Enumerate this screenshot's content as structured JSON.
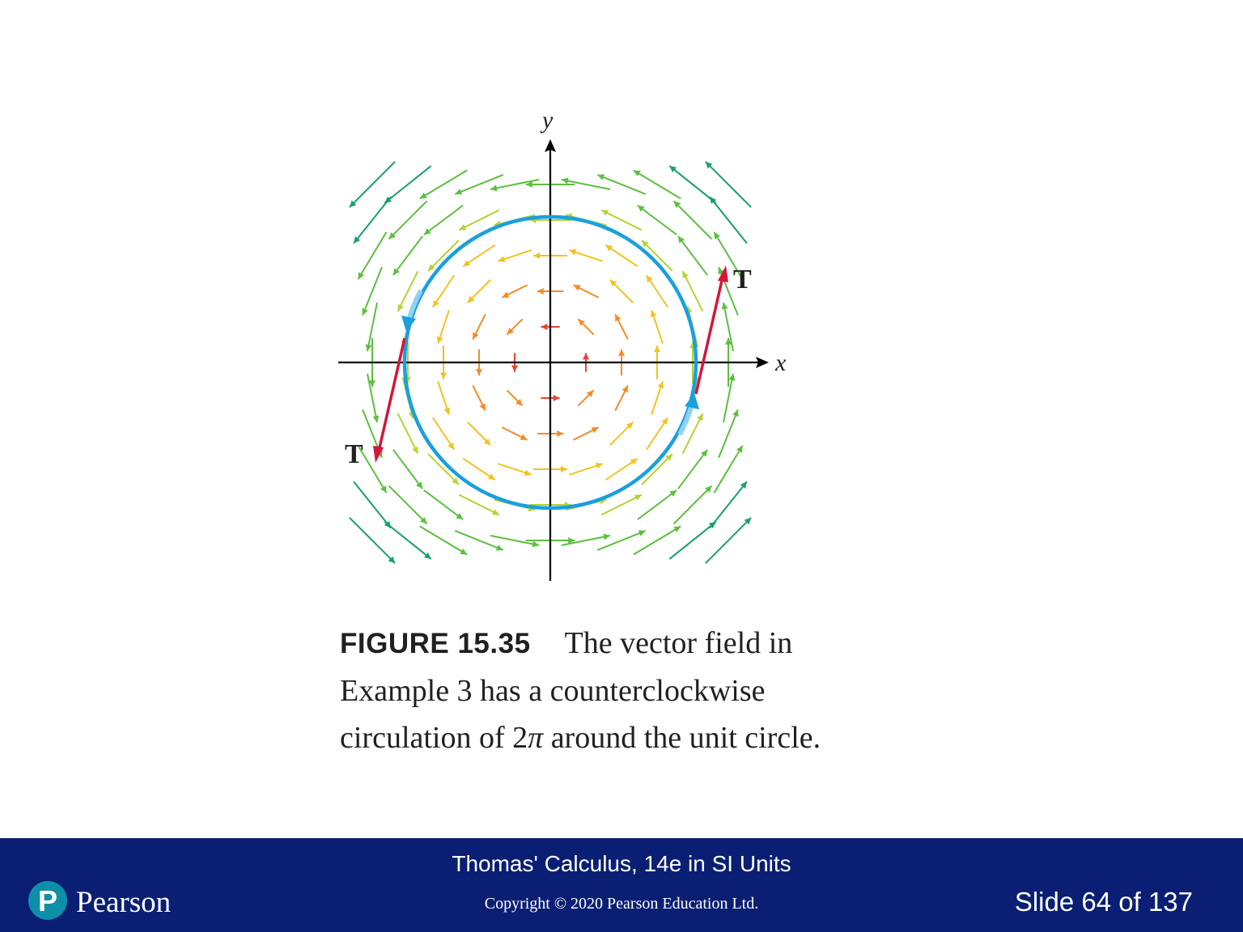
{
  "figure": {
    "axis_labels": {
      "x": "x",
      "y": "y"
    },
    "tangent_labels": [
      "T",
      "T"
    ],
    "caption": {
      "label": "FIGURE 15.35",
      "line1": "The vector field in",
      "line2": "Example 3 has a counterclockwise",
      "line3_pre": "circulation of 2",
      "line3_pi": "π",
      "line3_post": " around the unit circle."
    },
    "colors": {
      "circle": "#1aa0dc",
      "tangent": "#d4163c",
      "axes": "#000000"
    }
  },
  "footer": {
    "book_title": "Thomas' Calculus, 14e in SI Units",
    "copyright": "Copyright © 2020 Pearson Education Ltd.",
    "slide_number": "Slide 64 of 137",
    "logo_text": "Pearson",
    "logo_letter": "P",
    "background": "#0a1f73"
  }
}
